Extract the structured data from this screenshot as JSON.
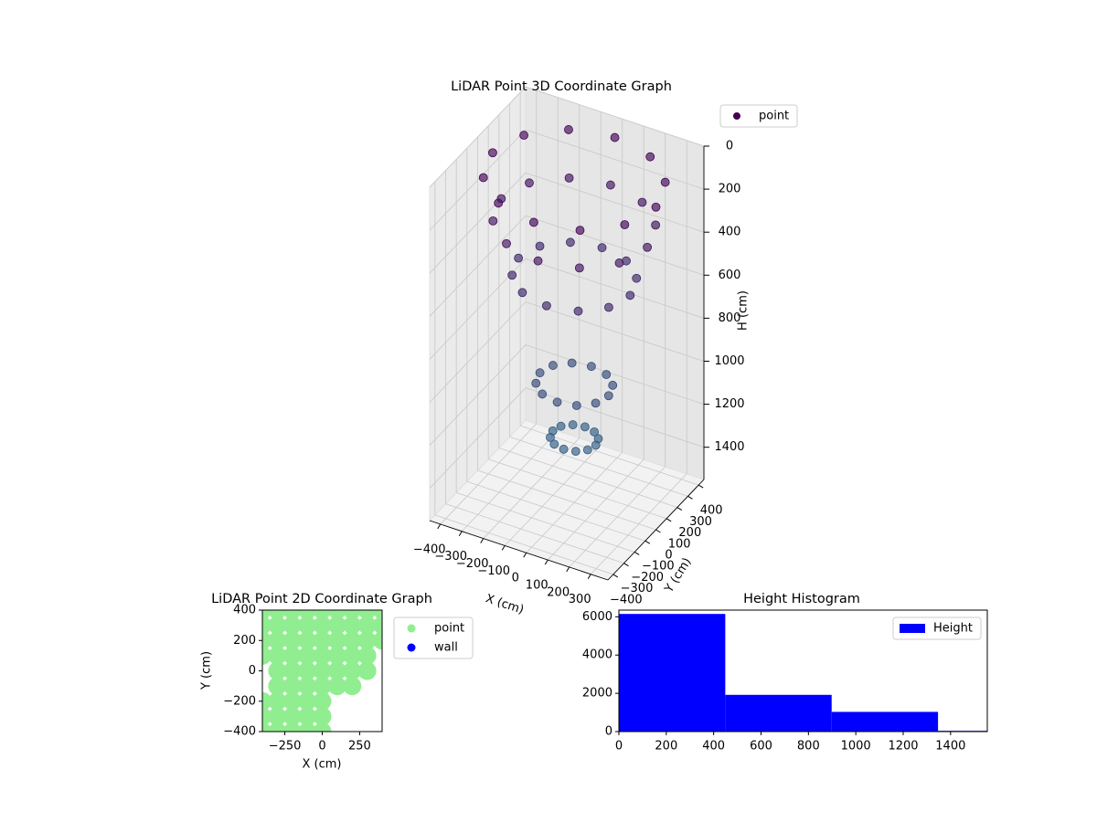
{
  "chart_data": [
    {
      "type": "scatter3d",
      "title": "LiDAR Point 3D Coordinate Graph",
      "x_label": "X (cm)",
      "y_label": "Y (cm)",
      "z_label": "H (cm)",
      "xlim": [
        -450,
        380
      ],
      "ylim": [
        -450,
        450
      ],
      "zlim": [
        1550,
        0
      ],
      "xticks": [
        {
          "value": -400,
          "label": "−400"
        },
        {
          "value": -300,
          "label": "−300"
        },
        {
          "value": -200,
          "label": "−200"
        },
        {
          "value": -100,
          "label": "−100"
        },
        0,
        100,
        200,
        300
      ],
      "yticks": [
        {
          "value": -400,
          "label": "−400"
        },
        {
          "value": -300,
          "label": "−300"
        },
        {
          "value": -200,
          "label": "−200"
        },
        {
          "value": -100,
          "label": "−100"
        },
        0,
        100,
        200,
        300,
        400
      ],
      "zticks": [
        0,
        200,
        400,
        600,
        800,
        1000,
        1200,
        1400
      ],
      "grid": true,
      "legend": "upper right",
      "cmap": [
        "#440154",
        "#2c728e"
      ],
      "series": [
        {
          "name": "point",
          "color": "#440154",
          "x": [
            380,
            329,
            190,
            0,
            -190,
            -329,
            -380,
            -329,
            -190,
            0,
            190,
            329,
            340,
            294,
            170,
            0,
            -170,
            -294,
            -340,
            -294,
            -170,
            0,
            170,
            294,
            260,
            225,
            130,
            0,
            -130,
            -225,
            -260,
            -225,
            -130,
            0,
            130,
            225,
            160,
            139,
            80,
            0,
            -80,
            -139,
            -160,
            -139,
            -80,
            0,
            80,
            139,
            100,
            87,
            50,
            0,
            -50,
            -87,
            -100,
            -87,
            -50,
            0,
            50,
            87
          ],
          "y": [
            0,
            190,
            329,
            380,
            329,
            190,
            0,
            -190,
            -329,
            -380,
            -329,
            -190,
            0,
            170,
            294,
            340,
            294,
            170,
            0,
            -170,
            -294,
            -340,
            -294,
            -170,
            0,
            130,
            225,
            260,
            225,
            130,
            0,
            -130,
            -225,
            -260,
            -225,
            -130,
            0,
            80,
            139,
            160,
            139,
            80,
            0,
            -80,
            -139,
            -160,
            -139,
            -80,
            0,
            50,
            87,
            100,
            87,
            50,
            0,
            -50,
            -87,
            -100,
            -87,
            -50
          ],
          "values": [
            50,
            50,
            50,
            50,
            50,
            50,
            50,
            50,
            50,
            50,
            50,
            50,
            250,
            250,
            250,
            250,
            250,
            250,
            250,
            250,
            250,
            250,
            250,
            250,
            500,
            500,
            500,
            500,
            500,
            500,
            500,
            500,
            500,
            500,
            500,
            500,
            1000,
            1000,
            1000,
            1000,
            1000,
            1000,
            1000,
            1000,
            1000,
            1000,
            1000,
            1000,
            1250,
            1250,
            1250,
            1250,
            1250,
            1250,
            1250,
            1250,
            1250,
            1250,
            1250,
            1250
          ]
        }
      ]
    },
    {
      "type": "scatter",
      "title": "LiDAR Point 2D Coordinate Graph",
      "x_label": "X (cm)",
      "y_label": "Y (cm)",
      "xlim": [
        -400,
        400
      ],
      "ylim": [
        -400,
        400
      ],
      "xticks": [
        {
          "value": -250,
          "label": "−250"
        },
        0,
        250
      ],
      "yticks": [
        {
          "value": -400,
          "label": "−400"
        },
        {
          "value": -200,
          "label": "−200"
        },
        0,
        200,
        400
      ],
      "legend": "outside right",
      "series": [
        {
          "name": "point",
          "color": "#90ee90",
          "x": [
            -400,
            -300,
            -200,
            -100,
            0,
            100,
            200,
            300,
            400,
            -400,
            -300,
            -200,
            -100,
            0,
            100,
            200,
            300,
            400,
            -400,
            -300,
            -200,
            -100,
            0,
            100,
            200,
            300,
            400,
            -400,
            -300,
            -200,
            -100,
            0,
            100,
            200,
            300,
            -300,
            -200,
            -100,
            0,
            100,
            200,
            300,
            -300,
            -200,
            -100,
            0,
            100,
            200,
            -400,
            -300,
            -200,
            -100,
            0,
            -400,
            -300,
            -200,
            -100,
            0,
            -400,
            -300,
            -200,
            -100,
            0
          ],
          "y": [
            400,
            400,
            400,
            400,
            400,
            400,
            400,
            400,
            400,
            300,
            300,
            300,
            300,
            300,
            300,
            300,
            300,
            300,
            200,
            200,
            200,
            200,
            200,
            200,
            200,
            200,
            200,
            100,
            100,
            100,
            100,
            100,
            100,
            100,
            100,
            0,
            0,
            0,
            0,
            0,
            0,
            0,
            -100,
            -100,
            -100,
            -100,
            -100,
            -100,
            -200,
            -200,
            -200,
            -200,
            -200,
            -300,
            -300,
            -300,
            -300,
            -300,
            -400,
            -400,
            -400,
            -400,
            -400
          ]
        },
        {
          "name": "wall",
          "color": "#0000ff",
          "x": [],
          "y": []
        }
      ]
    },
    {
      "type": "histogram",
      "title": "Height Histogram",
      "xlim": [
        0,
        1555
      ],
      "ylim": [
        0,
        6350
      ],
      "xticks": [
        0,
        200,
        400,
        600,
        800,
        1000,
        1200,
        1400
      ],
      "yticks": [
        0,
        2000,
        4000,
        6000
      ],
      "legend": "upper right",
      "series": [
        {
          "name": "Height",
          "color": "#0000ff",
          "bins": [
            0,
            449,
            898,
            1347,
            1796
          ],
          "values": [
            6150,
            1920,
            1030,
            40
          ]
        }
      ]
    }
  ]
}
